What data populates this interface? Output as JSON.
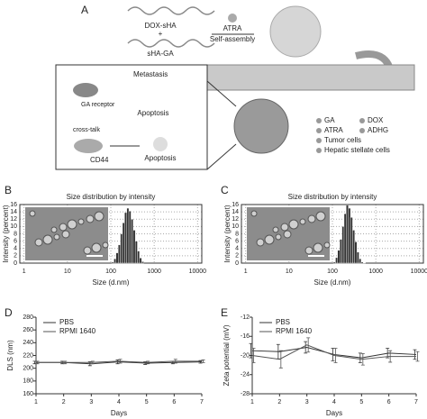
{
  "panel_a": {
    "label": "A",
    "dox_sha": "DOX-sHA",
    "plus": "+",
    "sha_ga": "sHA-GA",
    "atra": "ATRA",
    "self_assembly": "Self-assembly",
    "metastasis": "Metastasis",
    "ga_receptor": "GA\nreceptor",
    "cross_talk": "cross-talk",
    "apoptosis_1": "Apoptosis",
    "cd44": "CD44",
    "apoptosis_2": "Apoptosis",
    "legend": [
      "GA",
      "DOX",
      "ATRA",
      "ADHG",
      "Tumor cells",
      "Hepatic stellate cells"
    ]
  },
  "chart_data": [
    {
      "type": "histogram",
      "label": "B",
      "title": "Size distribution by intensity",
      "xlabel": "Size (d.nm)",
      "ylabel": "Intensity (percent)",
      "xscale": "log",
      "grid": true,
      "color": "#333333",
      "bins": [
        105,
        118,
        132,
        148,
        166,
        186,
        208,
        233,
        261,
        292,
        327,
        366,
        410,
        459,
        514,
        576
      ],
      "values": [
        0.3,
        1.2,
        2.8,
        5,
        8,
        11,
        13.8,
        15,
        14.2,
        12,
        9,
        6,
        3.3,
        1.4,
        0.4
      ],
      "xlim": [
        0.8,
        12500
      ],
      "xticks": [
        1,
        10,
        100,
        1000,
        10000
      ],
      "ylim": [
        0,
        16
      ],
      "yticks": [
        0,
        2,
        4,
        6,
        8,
        10,
        12,
        14,
        16
      ]
    },
    {
      "type": "histogram",
      "label": "C",
      "title": "Size distribution by intensity",
      "xlabel": "Size (d.nm)",
      "ylabel": "Intensity (percent)",
      "xscale": "log",
      "grid": true,
      "color": "#333333",
      "bins": [
        105,
        118,
        132,
        148,
        166,
        186,
        208,
        233,
        261,
        292,
        327,
        366,
        410,
        459,
        514,
        576
      ],
      "values": [
        0.3,
        1.5,
        3.5,
        6.5,
        10,
        13.5,
        15.8,
        15,
        12.5,
        9,
        5.8,
        3,
        1.2,
        0.3,
        0.1
      ],
      "xlim": [
        0.8,
        12500
      ],
      "xticks": [
        1,
        10,
        100,
        1000,
        10000
      ],
      "ylim": [
        0,
        16
      ],
      "yticks": [
        0,
        2,
        4,
        6,
        8,
        10,
        12,
        14,
        16
      ]
    },
    {
      "type": "line",
      "label": "D",
      "xlabel": "Days",
      "ylabel": "DLS (nm)",
      "grid": false,
      "legend": "upper left",
      "x": [
        1,
        2,
        3,
        4,
        5,
        6,
        7
      ],
      "xlim": [
        1,
        7
      ],
      "xticks": [
        1,
        2,
        3,
        4,
        5,
        6,
        7
      ],
      "ylim": [
        160,
        280
      ],
      "yticks": [
        160,
        180,
        200,
        220,
        240,
        260,
        280
      ],
      "series": [
        {
          "name": "PBS",
          "color": "#333333",
          "values": [
            209,
            209,
            207,
            210,
            208,
            209,
            210
          ],
          "errors": [
            2,
            2,
            3,
            3,
            2,
            2,
            2
          ]
        },
        {
          "name": "RPMI 1640",
          "color": "#555555",
          "values": [
            209,
            209,
            209,
            211,
            209,
            211,
            211
          ],
          "errors": [
            2,
            2,
            2,
            3,
            2,
            3,
            2
          ]
        }
      ]
    },
    {
      "type": "line",
      "label": "E",
      "xlabel": "Days",
      "ylabel": "Zeta potential (mV)",
      "grid": false,
      "legend": "upper left",
      "x": [
        1,
        2,
        3,
        4,
        5,
        6,
        7
      ],
      "xlim": [
        1,
        7
      ],
      "xticks": [
        1,
        2,
        3,
        4,
        5,
        6,
        7
      ],
      "ylim": [
        -28,
        -12
      ],
      "yticks": [
        -28,
        -24,
        -20,
        -16,
        -12
      ],
      "series": [
        {
          "name": "PBS",
          "color": "#333333",
          "values": [
            -19,
            -19.2,
            -18.3,
            -19.8,
            -20.5,
            -19.5,
            -19.8
          ],
          "errors": [
            1.5,
            1.5,
            1.2,
            1.3,
            1,
            1,
            1
          ]
        },
        {
          "name": "RPMI 1640",
          "color": "#555555",
          "values": [
            -20,
            -20.8,
            -17.8,
            -20,
            -20.8,
            -20.2,
            -20.2
          ],
          "errors": [
            1.5,
            1.8,
            1.5,
            1.5,
            1.2,
            1.2,
            1
          ]
        }
      ]
    }
  ]
}
